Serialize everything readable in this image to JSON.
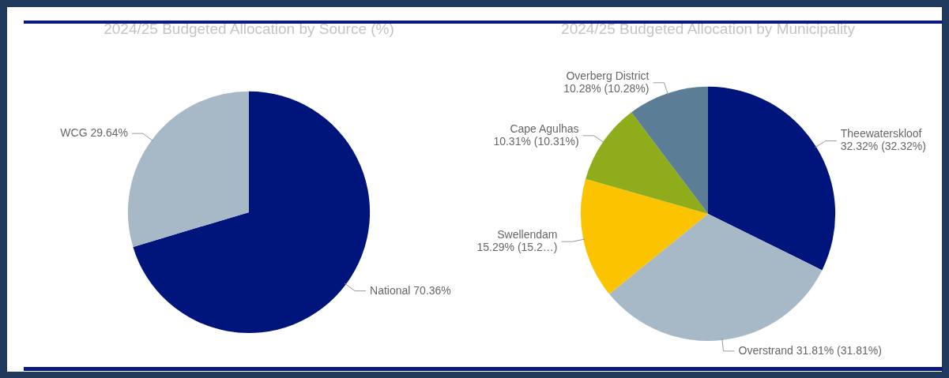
{
  "chart_data": [
    {
      "type": "pie",
      "title": "2024/25 Budgeted Allocation by Source (%)",
      "categories": [
        "National",
        "WCG"
      ],
      "values": [
        70.36,
        29.64
      ],
      "colors": [
        "#00157c",
        "#a7b9c6"
      ],
      "value_labels": [
        "70.36%",
        "29.64%"
      ]
    },
    {
      "type": "pie",
      "title": "2024/25 Budgeted Allocation by Municipality",
      "categories": [
        "Theewaterskloof",
        "Overstrand",
        "Swellendam",
        "Cape Agulhas",
        "Overberg District"
      ],
      "values": [
        32.32,
        31.81,
        15.29,
        10.31,
        10.28
      ],
      "colors": [
        "#00157c",
        "#a7b9c6",
        "#fcc300",
        "#8fac1a",
        "#5b7e96"
      ],
      "value_labels": [
        "32.32% (32.32%)",
        "31.81% (31.81%)",
        "15.29% (15.2…)",
        "10.31% (10.31%)",
        "10.28% (10.28%)"
      ]
    }
  ]
}
